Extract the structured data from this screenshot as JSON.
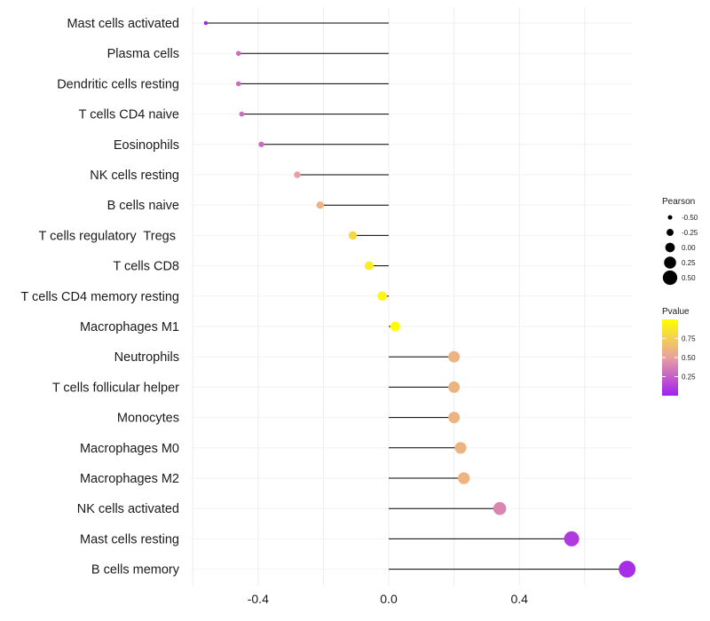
{
  "chart_data": {
    "type": "lollipop",
    "title": "",
    "xlabel": "",
    "ylabel": "",
    "xlim": [
      -0.6,
      0.75
    ],
    "xticks": [
      -0.4,
      0.0,
      0.4
    ],
    "xtick_labels": [
      "-0.4",
      "0.0",
      "0.4"
    ],
    "grid": true,
    "categories": [
      "Mast cells activated",
      "Plasma cells",
      "Dendritic cells resting",
      "T cells CD4 naive",
      "Eosinophils",
      "NK cells resting",
      "B cells naive",
      "T cells regulatory  Tregs ",
      "T cells CD8",
      "T cells CD4 memory resting",
      "Macrophages M1",
      "Neutrophils",
      "T cells follicular helper",
      "Monocytes",
      "Macrophages M0",
      "Macrophages M2",
      "NK cells activated",
      "Mast cells resting",
      "B cells memory"
    ],
    "values": [
      -0.56,
      -0.46,
      -0.46,
      -0.45,
      -0.39,
      -0.28,
      -0.21,
      -0.11,
      -0.06,
      -0.02,
      0.02,
      0.2,
      0.2,
      0.2,
      0.22,
      0.23,
      0.34,
      0.56,
      0.73
    ],
    "pvalues": [
      0.02,
      0.3,
      0.3,
      0.3,
      0.3,
      0.5,
      0.6,
      0.8,
      0.9,
      0.95,
      0.98,
      0.6,
      0.6,
      0.6,
      0.6,
      0.6,
      0.4,
      0.1,
      0.05
    ],
    "size_legend": {
      "title": "Pearson",
      "values": [
        -0.5,
        -0.25,
        0.0,
        0.25,
        0.5
      ],
      "labels": [
        "-0.50",
        "-0.25",
        "0.00",
        "0.25",
        "0.50"
      ]
    },
    "color_legend": {
      "title": "Pvalue",
      "ticks": [
        0.25,
        0.5,
        0.75
      ],
      "tick_labels": [
        "0.25",
        "0.50",
        "0.75"
      ],
      "range": [
        0.0,
        1.0
      ],
      "colors": [
        "#a020f0",
        "#e8a0a0",
        "#ffff00"
      ]
    }
  }
}
